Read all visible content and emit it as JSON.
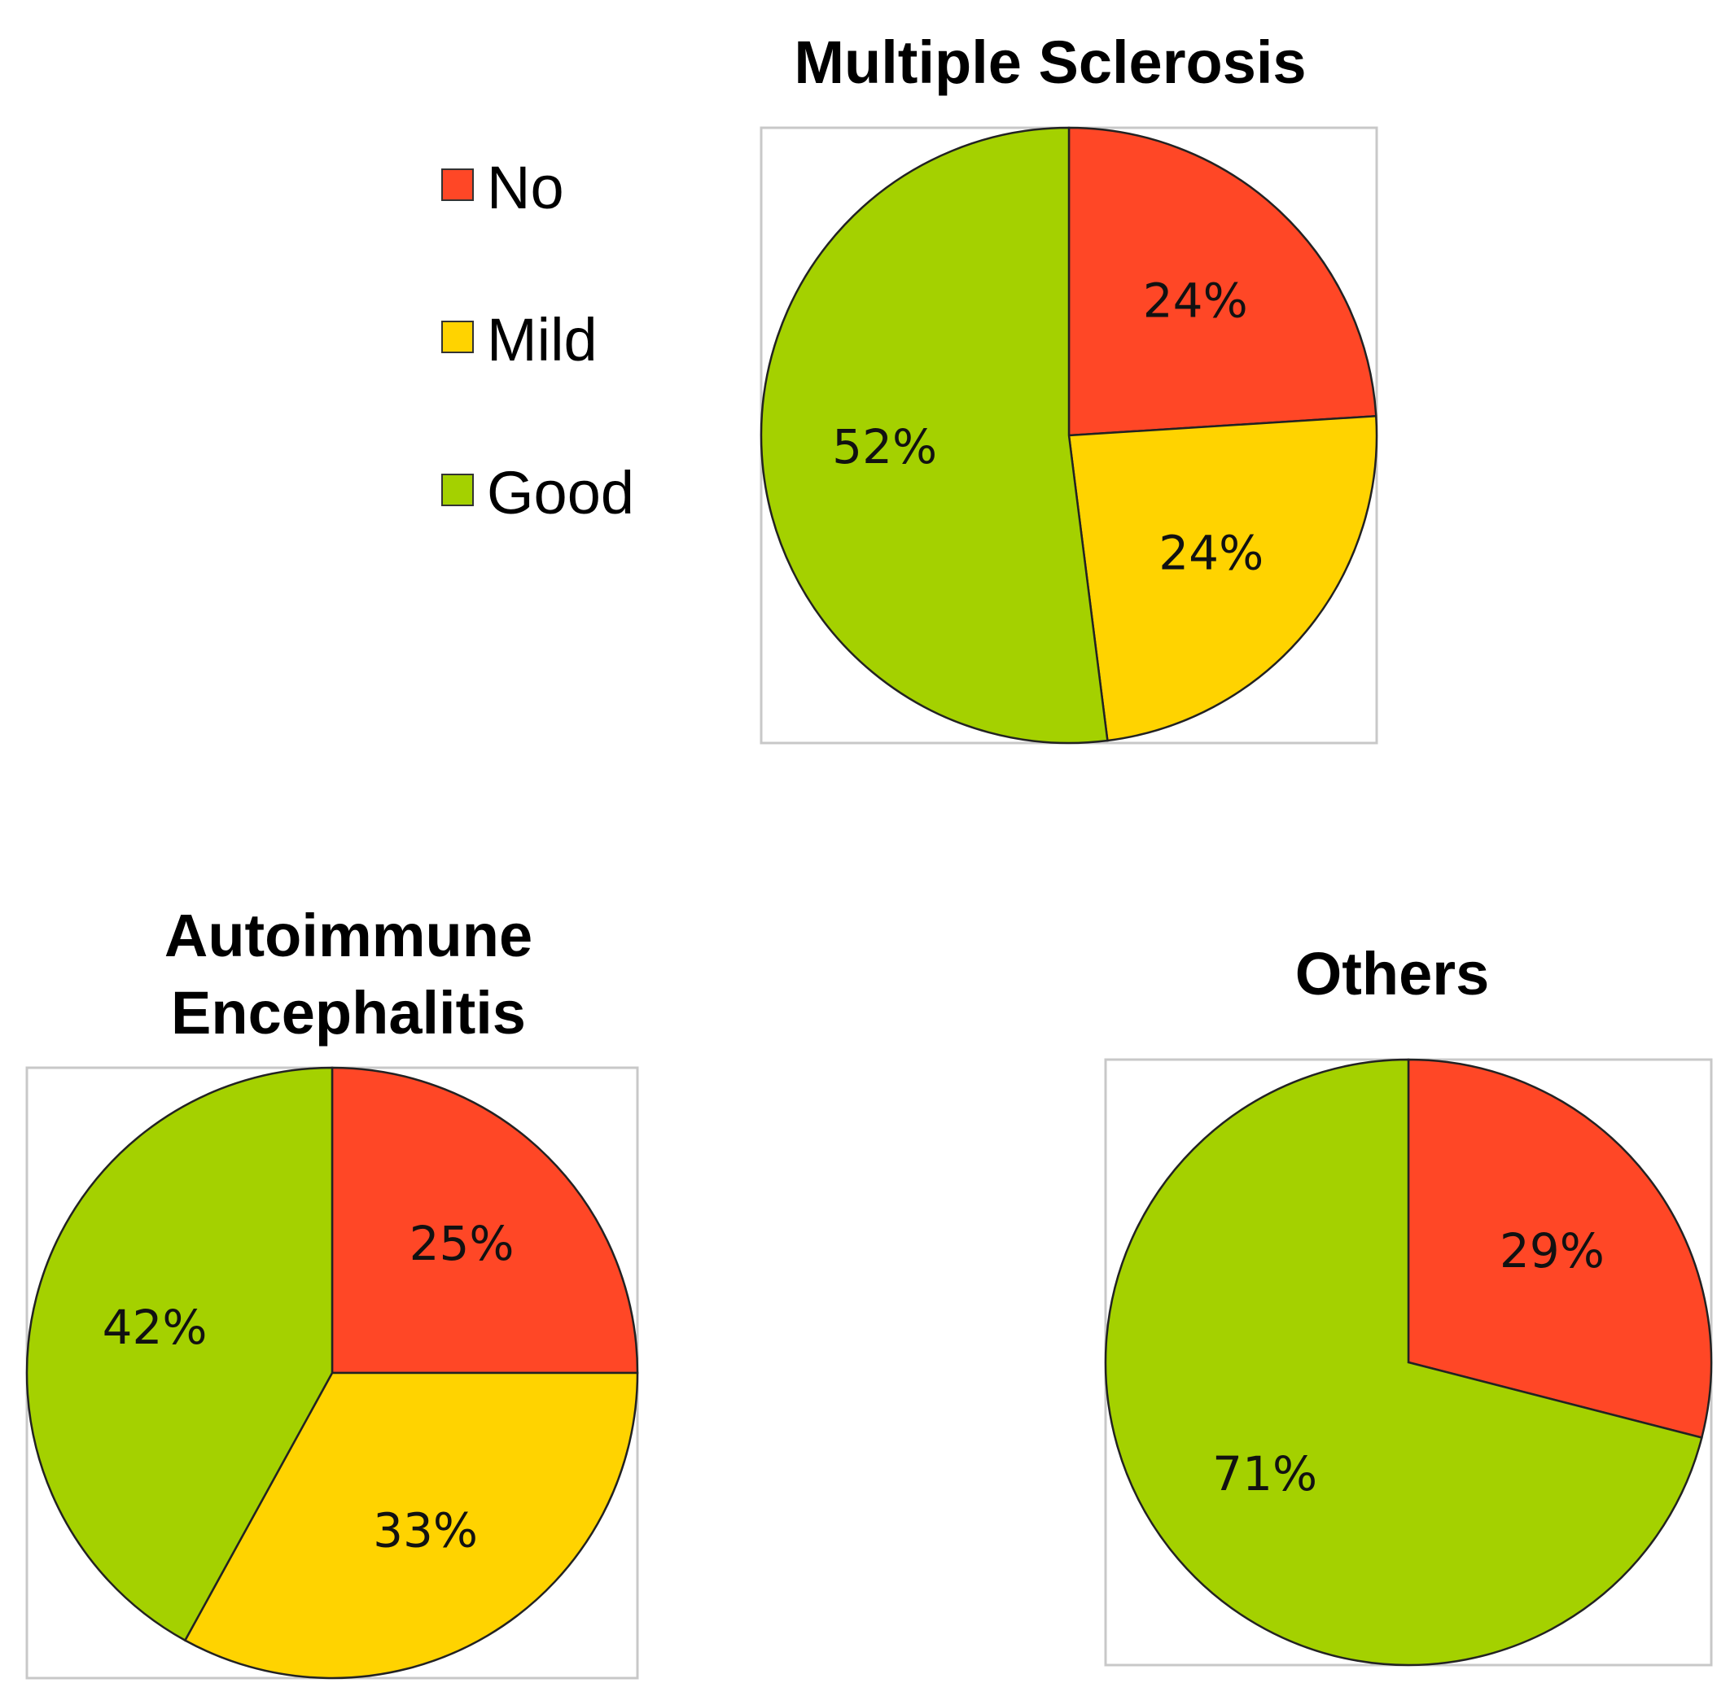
{
  "colors": {
    "No": "#ff4726",
    "Mild": "#ffd300",
    "Good": "#a4d100"
  },
  "legend": {
    "items": [
      {
        "label": "No",
        "category": "No"
      },
      {
        "label": "Mild",
        "category": "Mild"
      },
      {
        "label": "Good",
        "category": "Good"
      }
    ]
  },
  "chart_data": [
    {
      "type": "pie",
      "title": [
        "Multiple Sclerosis"
      ],
      "categories": [
        "No",
        "Mild",
        "Good"
      ],
      "values": [
        24,
        24,
        52
      ],
      "labels": [
        "24%",
        "24%",
        "52%"
      ]
    },
    {
      "type": "pie",
      "title": [
        "Autoimmune",
        "Encephalitis"
      ],
      "categories": [
        "No",
        "Mild",
        "Good"
      ],
      "values": [
        25,
        33,
        42
      ],
      "labels": [
        "25%",
        "33%",
        "42%"
      ]
    },
    {
      "type": "pie",
      "title": [
        "Others"
      ],
      "categories": [
        "No",
        "Good"
      ],
      "values": [
        29,
        71
      ],
      "labels": [
        "29%",
        "71%"
      ]
    }
  ]
}
